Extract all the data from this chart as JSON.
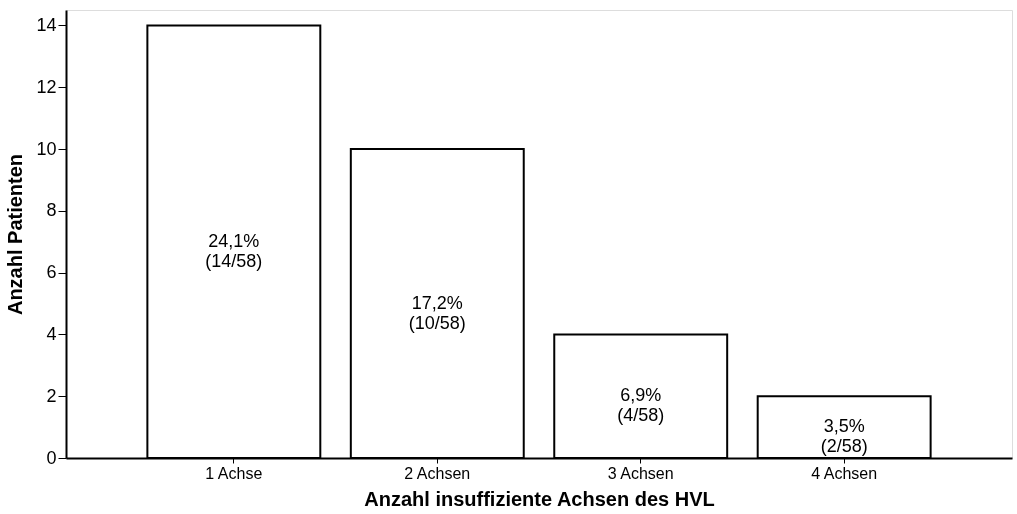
{
  "chart_data": {
    "type": "bar",
    "xlabel": "Anzahl insuffiziente Achsen des HVL",
    "ylabel": "Anzahl Patienten",
    "categories": [
      "1 Achse",
      "2 Achsen",
      "3 Achsen",
      "4 Achsen"
    ],
    "values": [
      14,
      10,
      4,
      2
    ],
    "color": "#ffffff",
    "value_labels": [
      "24,1%\n(14/58)",
      "17,2%\n(10/58)",
      "6,9%\n(4/58)",
      "3,5%\n(2/58)"
    ],
    "ylim": [
      0,
      14.5
    ],
    "yticks": [
      0,
      2,
      4,
      6,
      8,
      10,
      12,
      14
    ],
    "grid": false
  }
}
